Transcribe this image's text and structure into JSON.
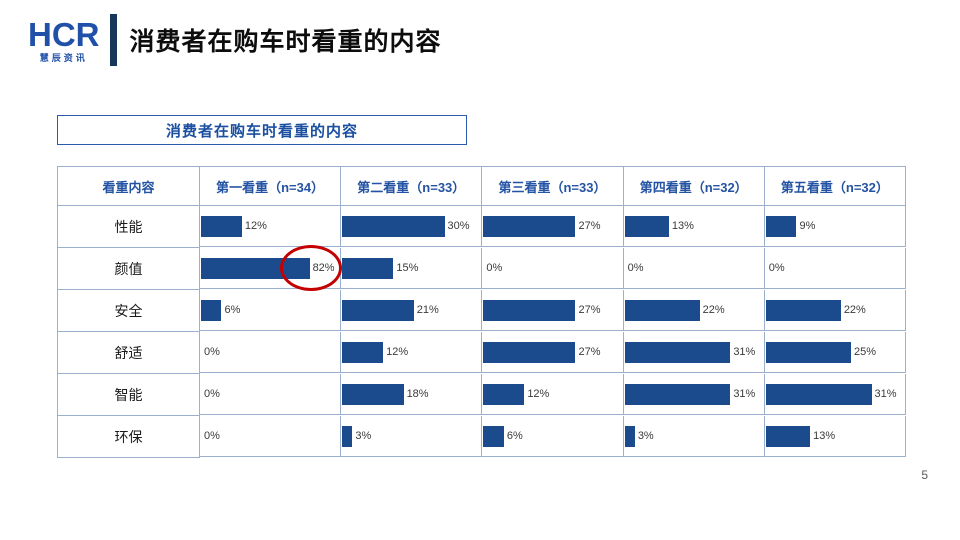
{
  "slide": {
    "page_number": "5"
  },
  "logo": {
    "text": "HCR",
    "subtext": "慧辰资讯"
  },
  "header": {
    "title": "消费者在购车时看重的内容"
  },
  "section_box": {
    "title": "消费者在购车时看重的内容"
  },
  "chart_data": {
    "type": "bar",
    "title": "消费者在购车时看重的内容",
    "orientation": "horizontal",
    "columns": [
      "看重内容",
      "第一看重（n=34）",
      "第二看重（n=33）",
      "第三看重（n=33）",
      "第四看重（n=32）",
      "第五看重（n=32）"
    ],
    "rows": [
      "性能",
      "颜值",
      "安全",
      "舒适",
      "智能",
      "环保"
    ],
    "series": [
      {
        "name": "第一看重（n=34）",
        "values": [
          12,
          82,
          6,
          0,
          0,
          0
        ]
      },
      {
        "name": "第二看重（n=33）",
        "values": [
          30,
          15,
          21,
          12,
          18,
          3
        ]
      },
      {
        "name": "第三看重（n=33）",
        "values": [
          27,
          0,
          27,
          27,
          12,
          6
        ]
      },
      {
        "name": "第四看重（n=32）",
        "values": [
          13,
          0,
          22,
          31,
          31,
          3
        ]
      },
      {
        "name": "第五看重（n=32）",
        "values": [
          9,
          0,
          22,
          25,
          31,
          13
        ]
      }
    ],
    "value_suffix": "%",
    "bar_color": "#1b4b8c",
    "annotation": {
      "type": "red-circle",
      "row": 1,
      "col": 0,
      "color": "#c40000",
      "note": "颜值 第一看重 82%"
    }
  }
}
